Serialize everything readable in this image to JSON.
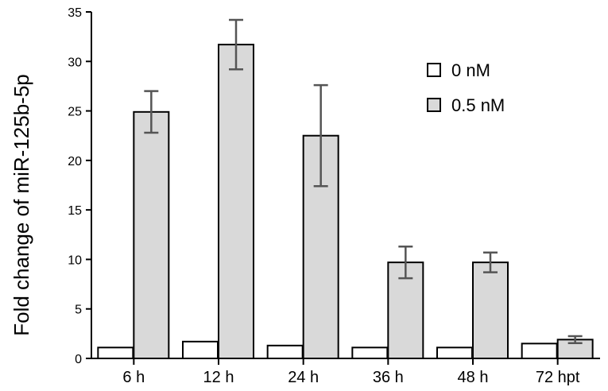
{
  "chart_data": {
    "type": "bar",
    "title": "",
    "xlabel": "",
    "ylabel": "Fold change of miR-125b-5p",
    "categories": [
      "6 h",
      "12 h",
      "24 h",
      "36 h",
      "48 h",
      "72 hpt"
    ],
    "ylim": [
      0,
      35
    ],
    "yticks": [
      0,
      5,
      10,
      15,
      20,
      25,
      30,
      35
    ],
    "grid": false,
    "legend_position": "top-right",
    "series": [
      {
        "name": "0 nM",
        "color": "#ffffff",
        "values": [
          1.1,
          1.7,
          1.3,
          1.1,
          1.1,
          1.5
        ],
        "errors": [
          0,
          0,
          0,
          0,
          0,
          0
        ]
      },
      {
        "name": "0.5 nM",
        "color": "#d9d9d9",
        "values": [
          24.9,
          31.7,
          22.5,
          9.7,
          9.7,
          1.9
        ],
        "errors": [
          2.1,
          2.5,
          5.1,
          1.6,
          1.0,
          0.35
        ]
      }
    ]
  }
}
